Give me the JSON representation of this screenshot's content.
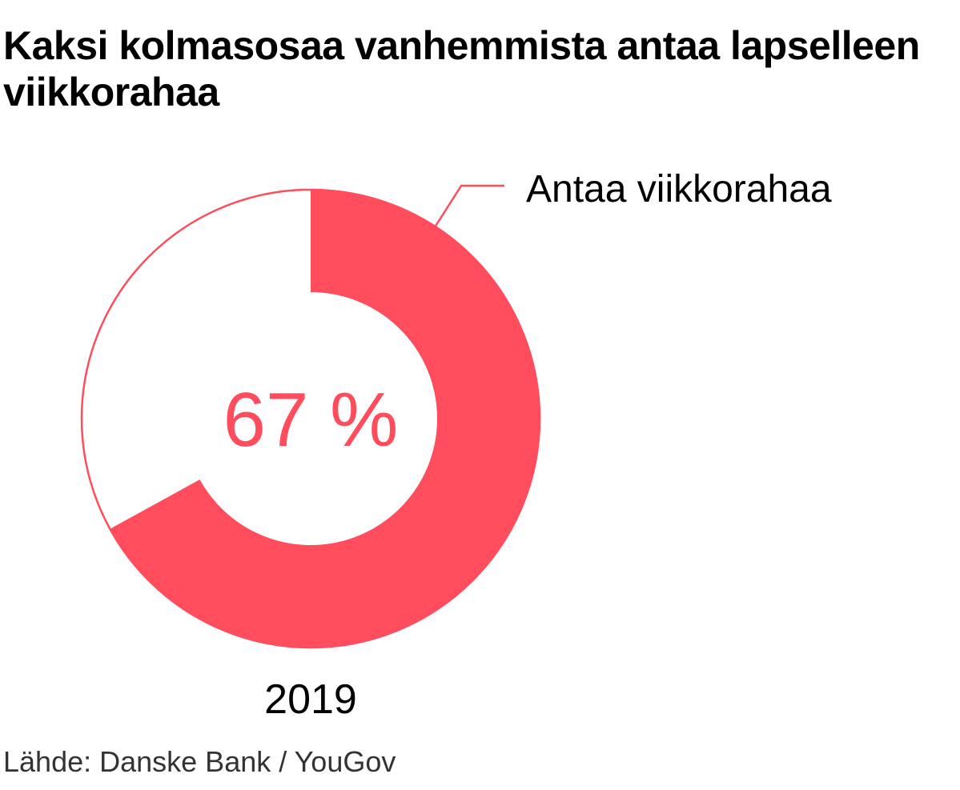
{
  "title": "Kaksi kolmasosaa vanhemmista antaa lapselleen viikkorahaa",
  "source": "Lähde: Danske Bank / YouGov",
  "colors": {
    "accent": "#ff4d5e",
    "remainder": "#ffffff",
    "text": "#000000"
  },
  "chart_data": {
    "type": "pie",
    "variant": "donut",
    "title": "Kaksi kolmasosaa vanhemmista antaa lapselleen viikkorahaa",
    "categories": [
      "2019"
    ],
    "series": [
      {
        "name": "Antaa viikkorahaa",
        "values": [
          67
        ]
      }
    ],
    "unit": "%",
    "total": 100,
    "center_label": "67 %",
    "category_label": "2019",
    "legend": "top-right",
    "grid": false
  }
}
